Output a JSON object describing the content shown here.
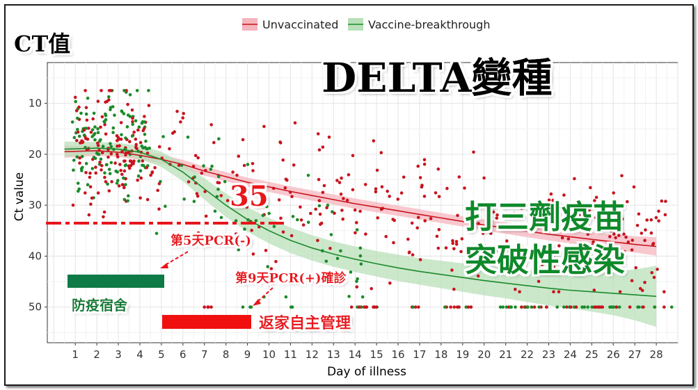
{
  "chart_data": {
    "type": "scatter",
    "xlabel": "Day of illness",
    "ylabel": "Ct value",
    "x_ticks": [
      1,
      2,
      3,
      4,
      5,
      6,
      7,
      8,
      9,
      10,
      11,
      12,
      13,
      14,
      15,
      16,
      17,
      18,
      19,
      20,
      21,
      22,
      23,
      24,
      25,
      26,
      27,
      28
    ],
    "y_ticks": [
      10,
      20,
      30,
      40,
      50
    ],
    "xlim": [
      -0.3,
      29
    ],
    "ylim": [
      57,
      2
    ],
    "y_reversed": true,
    "grid": true,
    "legend_position": "top",
    "series": [
      {
        "name": "Unvaccinated",
        "color": "#c8141e",
        "band_color": "#f5b5bd",
        "fit_curve": [
          [
            0.5,
            19.5
          ],
          [
            2,
            19.3
          ],
          [
            3,
            19.6
          ],
          [
            4,
            20.2
          ],
          [
            5,
            21.0
          ],
          [
            6,
            22.0
          ],
          [
            7,
            23.3
          ],
          [
            8,
            24.4
          ],
          [
            9,
            25.5
          ],
          [
            10,
            26.4
          ],
          [
            11,
            27.3
          ],
          [
            12,
            28.1
          ],
          [
            13,
            28.9
          ],
          [
            14,
            29.7
          ],
          [
            15,
            30.4
          ],
          [
            16,
            31.1
          ],
          [
            17,
            31.8
          ],
          [
            18,
            32.5
          ],
          [
            19,
            33.2
          ],
          [
            20,
            33.9
          ],
          [
            21,
            34.5
          ],
          [
            22,
            35.1
          ],
          [
            23,
            35.7
          ],
          [
            24,
            36.2
          ],
          [
            25,
            36.7
          ],
          [
            26,
            37.2
          ],
          [
            27,
            37.7
          ],
          [
            28,
            38.1
          ]
        ],
        "band_halfwidth": [
          1.2,
          1.0,
          0.9,
          0.9,
          0.9,
          0.9,
          0.9,
          0.9,
          0.9,
          1.0,
          1.0,
          1.0,
          1.0,
          1.0,
          1.0,
          1.0,
          1.0,
          1.0,
          1.0,
          1.1,
          1.1,
          1.2,
          1.2,
          1.3,
          1.4,
          1.5,
          1.6,
          1.8
        ]
      },
      {
        "name": "Vaccine-breakthrough",
        "color": "#1b8a2a",
        "band_color": "#b9e0b9",
        "fit_curve": [
          [
            0.5,
            19.0
          ],
          [
            2,
            18.8
          ],
          [
            3,
            19.0
          ],
          [
            4,
            19.6
          ],
          [
            5,
            21.0
          ],
          [
            6,
            23.5
          ],
          [
            7,
            26.8
          ],
          [
            8,
            30.0
          ],
          [
            9,
            32.8
          ],
          [
            10,
            35.0
          ],
          [
            11,
            36.9
          ],
          [
            12,
            38.4
          ],
          [
            13,
            39.6
          ],
          [
            14,
            40.6
          ],
          [
            15,
            41.5
          ],
          [
            16,
            42.3
          ],
          [
            17,
            43.0
          ],
          [
            18,
            43.6
          ],
          [
            19,
            44.2
          ],
          [
            20,
            44.8
          ],
          [
            21,
            45.3
          ],
          [
            22,
            45.8
          ],
          [
            23,
            46.3
          ],
          [
            24,
            46.7
          ],
          [
            25,
            47.0
          ],
          [
            26,
            47.3
          ],
          [
            27,
            47.6
          ],
          [
            28,
            47.9
          ]
        ],
        "band_halfwidth": [
          1.5,
          1.2,
          1.2,
          1.3,
          1.5,
          1.8,
          2.1,
          2.3,
          2.4,
          2.5,
          2.5,
          2.5,
          2.5,
          2.5,
          2.5,
          2.6,
          2.6,
          2.7,
          2.8,
          2.9,
          3.0,
          3.2,
          3.4,
          3.6,
          3.9,
          4.3,
          5.0,
          6.0
        ]
      }
    ],
    "scatter_note": "approximately 650 individual Ct observations scattered around the fitted curves; negative results plotted at Ct 50"
  },
  "legend": {
    "items": [
      {
        "label": "Unvaccinated",
        "color": "#e06070",
        "fill": "#f5b5bd"
      },
      {
        "label": "Vaccine-breakthrough",
        "color": "#1b8a2a",
        "fill": "#b9e0b9"
      }
    ]
  },
  "annotations": {
    "ct_title": "CT值",
    "headline": "DELTA變種",
    "threshold_value": "35",
    "threshold_color": "#e8151b",
    "green_headline_1": "打三劑疫苗",
    "green_headline_2": "突破性感染",
    "day5_note": "第5天PCR(-)",
    "day9_note": "第9天PCR(+)確診",
    "quarantine_hotel": "防疫宿舍",
    "quarantine_hotel_color": "#0e7a45",
    "home_management": "返家自主管理",
    "home_management_color": "#f01010"
  }
}
